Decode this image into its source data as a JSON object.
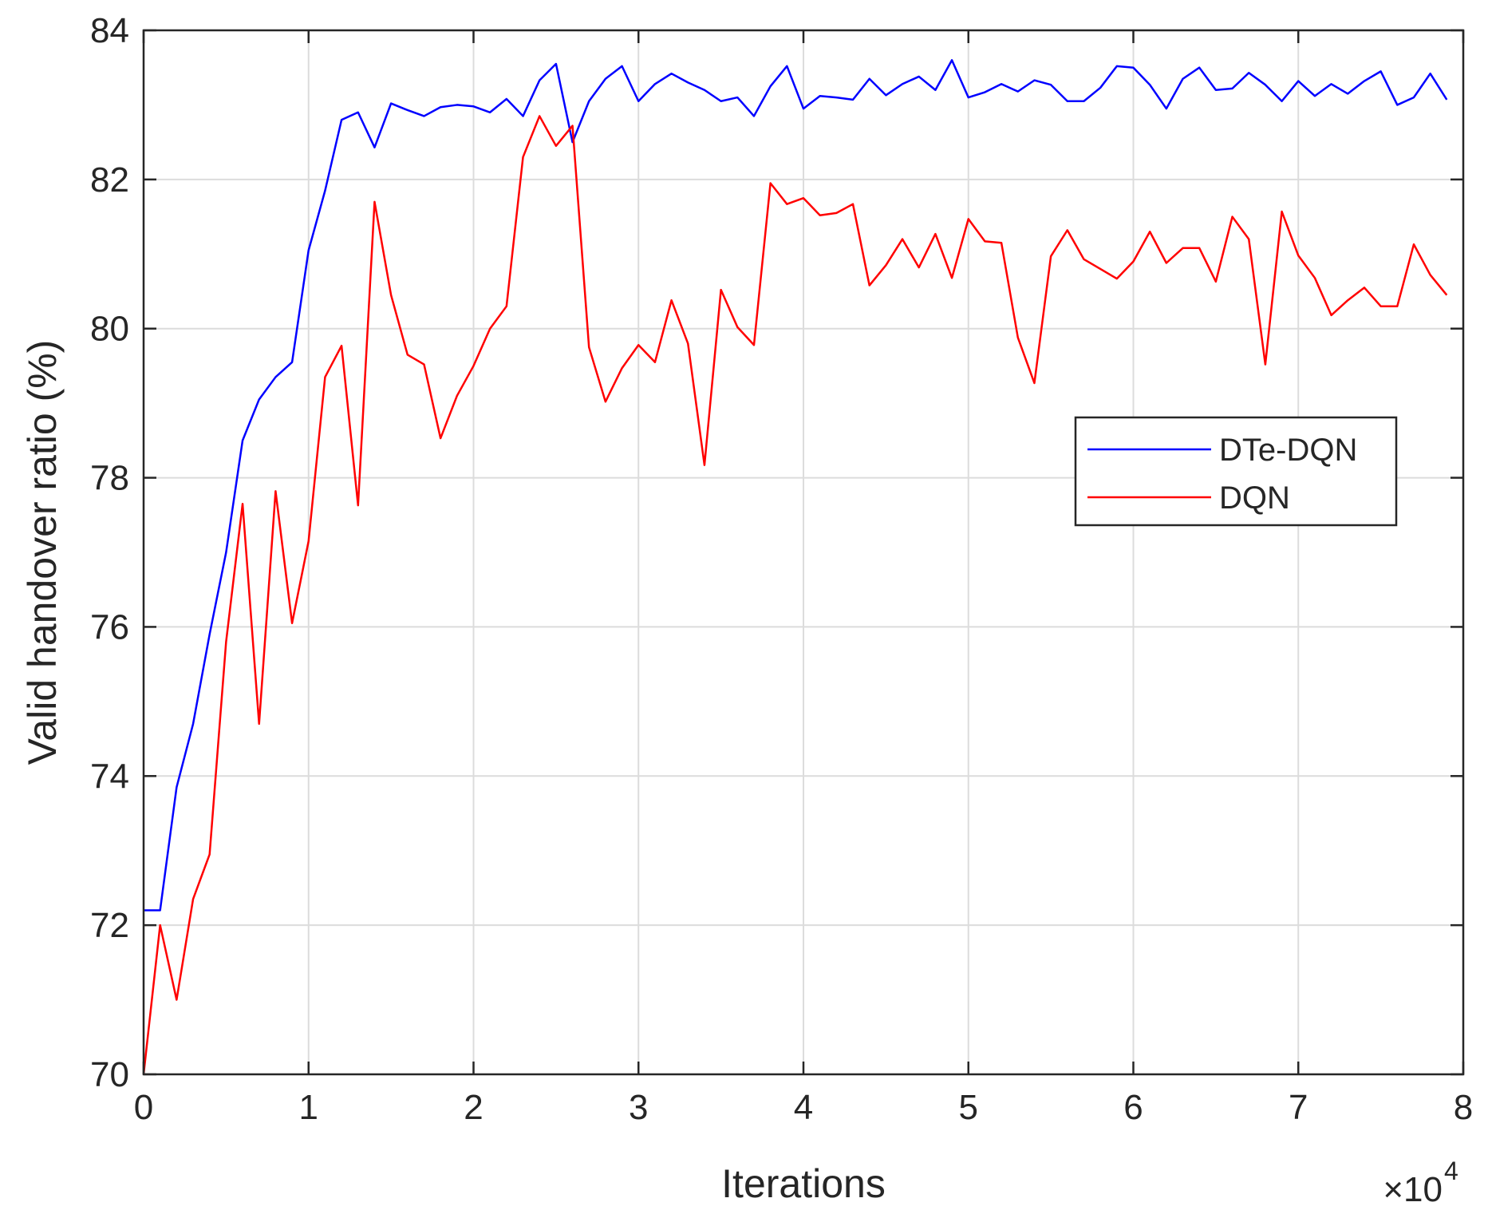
{
  "chart_data": {
    "type": "line",
    "xlabel": "Iterations",
    "ylabel": "Valid handover ratio (%)",
    "x_multiplier_label": "×10",
    "x_multiplier_exponent": "4",
    "xlim": [
      0,
      8
    ],
    "ylim": [
      70,
      84
    ],
    "x_ticks": [
      0,
      1,
      2,
      3,
      4,
      5,
      6,
      7,
      8
    ],
    "y_ticks": [
      70,
      72,
      74,
      76,
      78,
      80,
      82,
      84
    ],
    "grid": true,
    "legend_position": "right",
    "x_step": 0.1,
    "series": [
      {
        "name": "DTe-DQN",
        "color": "#0000ff",
        "values": [
          72.2,
          72.2,
          73.85,
          74.7,
          75.9,
          77.0,
          78.5,
          79.05,
          79.35,
          79.55,
          81.05,
          81.85,
          82.8,
          82.9,
          82.43,
          83.02,
          82.93,
          82.85,
          82.97,
          83.0,
          82.98,
          82.9,
          83.08,
          82.85,
          83.33,
          83.55,
          82.5,
          83.05,
          83.35,
          83.52,
          83.05,
          83.28,
          83.42,
          83.3,
          83.2,
          83.05,
          83.1,
          82.85,
          83.25,
          83.52,
          82.95,
          83.12,
          83.1,
          83.07,
          83.35,
          83.13,
          83.28,
          83.38,
          83.2,
          83.6,
          83.1,
          83.17,
          83.28,
          83.18,
          83.33,
          83.27,
          83.05,
          83.05,
          83.23,
          83.52,
          83.5,
          83.27,
          82.95,
          83.35,
          83.5,
          83.2,
          83.22,
          83.43,
          83.27,
          83.05,
          83.32,
          83.12,
          83.28,
          83.15,
          83.32,
          83.45,
          83.0,
          83.1,
          83.42,
          83.07
        ]
      },
      {
        "name": "DQN",
        "color": "#ff0000",
        "values": [
          70.0,
          72.0,
          71.0,
          72.35,
          72.95,
          75.8,
          77.65,
          74.7,
          77.82,
          76.05,
          77.15,
          79.35,
          79.77,
          77.63,
          81.7,
          80.45,
          79.65,
          79.52,
          78.53,
          79.1,
          79.5,
          80.0,
          80.3,
          82.3,
          82.85,
          82.45,
          82.72,
          79.75,
          79.02,
          79.47,
          79.78,
          79.55,
          80.38,
          79.8,
          78.17,
          80.52,
          80.02,
          79.78,
          81.95,
          81.67,
          81.75,
          81.52,
          81.55,
          81.67,
          80.58,
          80.85,
          81.2,
          80.82,
          81.27,
          80.68,
          81.47,
          81.17,
          81.15,
          79.88,
          79.27,
          80.97,
          81.32,
          80.93,
          80.8,
          80.67,
          80.9,
          81.3,
          80.88,
          81.08,
          81.08,
          80.63,
          81.5,
          81.2,
          79.52,
          81.57,
          80.98,
          80.68,
          80.18,
          80.38,
          80.55,
          80.3,
          80.3,
          81.13,
          80.72,
          80.45
        ]
      }
    ]
  }
}
